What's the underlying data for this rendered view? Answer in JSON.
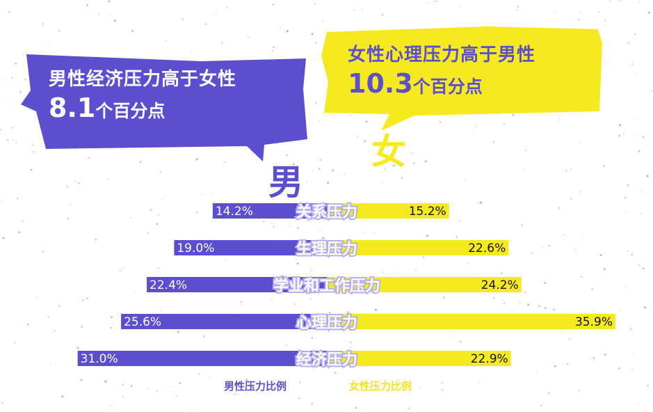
{
  "bubbles": {
    "left": {
      "line1": "男性经济压力高于女性",
      "number": "8.1",
      "unit": "个百分点"
    },
    "right": {
      "line1": "女性心理压力高于男性",
      "number": "10.3",
      "unit": "个百分点"
    }
  },
  "genders": {
    "male": "男",
    "female": "女"
  },
  "legend": {
    "male": "男性压力比例",
    "female": "女性压力比例"
  },
  "colors": {
    "male": "#5b4fd0",
    "female": "#f5ea1f",
    "label_outline": "#b5aef0"
  },
  "chart_data": {
    "type": "bar",
    "orientation": "diverging-horizontal",
    "categories": [
      "关系压力",
      "生理压力",
      "学业和工作压力",
      "心理压力",
      "经济压力"
    ],
    "series": [
      {
        "name": "男性压力比例",
        "values": [
          14.2,
          19.0,
          22.4,
          25.6,
          31.0
        ],
        "labels": [
          "14.2%",
          "19.0%",
          "22.4%",
          "25.6%",
          "31.0%"
        ]
      },
      {
        "name": "女性压力比例",
        "values": [
          15.2,
          22.6,
          24.2,
          35.9,
          22.9
        ],
        "labels": [
          "15.2%",
          "22.6%",
          "24.2%",
          "35.9%",
          "22.9%"
        ]
      }
    ],
    "legend": "bottom"
  }
}
